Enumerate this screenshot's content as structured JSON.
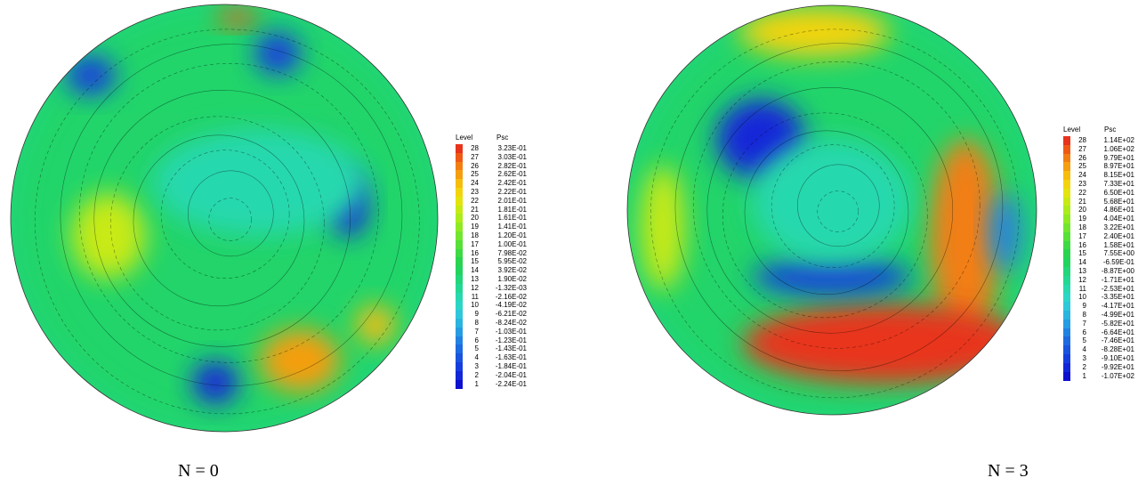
{
  "chart_data": [
    {
      "type": "heatmap",
      "caption": "N = 0",
      "legend": {
        "header_level": "Level",
        "header_value": "Psc",
        "levels": [
          28,
          27,
          26,
          25,
          24,
          23,
          22,
          21,
          20,
          19,
          18,
          17,
          16,
          15,
          14,
          13,
          12,
          11,
          10,
          9,
          8,
          7,
          6,
          5,
          4,
          3,
          2,
          1
        ],
        "values": [
          "3.23E-01",
          "3.03E-01",
          "2.82E-01",
          "2.62E-01",
          "2.42E-01",
          "2.22E-01",
          "2.01E-01",
          "1.81E-01",
          "1.61E-01",
          "1.41E-01",
          "1.20E-01",
          "1.00E-01",
          "7.98E-02",
          "5.95E-02",
          "3.92E-02",
          "1.90E-02",
          "-1.32E-03",
          "-2.16E-02",
          "-4.19E-02",
          "-6.21E-02",
          "-8.24E-02",
          "-1.03E-01",
          "-1.23E-01",
          "-1.43E-01",
          "-1.63E-01",
          "-1.84E-01",
          "-2.04E-01",
          "-2.24E-01"
        ],
        "colors": [
          "#e8341c",
          "#ee5a16",
          "#f27e12",
          "#f59e0f",
          "#f7bd0d",
          "#f3d40c",
          "#e3e40e",
          "#c8ea14",
          "#acec1c",
          "#8fea24",
          "#72e62e",
          "#56e038",
          "#3dda44",
          "#2ad44e",
          "#22d45e",
          "#22d67a",
          "#24d894",
          "#28d8ae",
          "#2cd6c6",
          "#2ec8da",
          "#2ab4e0",
          "#269ce2",
          "#2282e2",
          "#1e6ae0",
          "#1a54de",
          "#163ede",
          "#1228d8",
          "#0e10d0"
        ]
      },
      "blobs": [
        {
          "region": "upper-left blue",
          "level": 3
        },
        {
          "region": "top red",
          "level": 27
        },
        {
          "region": "top blue",
          "level": 3
        },
        {
          "region": "right blue",
          "level": 2
        },
        {
          "region": "left yellow",
          "level": 21
        },
        {
          "region": "bottom blue",
          "level": 2
        },
        {
          "region": "bottom orange",
          "level": 25
        },
        {
          "region": "right orange",
          "level": 24
        },
        {
          "region": "center cyan",
          "level": 11
        }
      ]
    },
    {
      "type": "heatmap",
      "caption": "N = 3",
      "legend": {
        "header_level": "Level",
        "header_value": "Psc",
        "levels": [
          28,
          27,
          26,
          25,
          24,
          23,
          22,
          21,
          20,
          19,
          18,
          17,
          16,
          15,
          14,
          13,
          12,
          11,
          10,
          9,
          8,
          7,
          6,
          5,
          4,
          3,
          2,
          1
        ],
        "values": [
          "1.14E+02",
          "1.06E+02",
          "9.79E+01",
          "8.97E+01",
          "8.15E+01",
          "7.33E+01",
          "6.50E+01",
          "5.68E+01",
          "4.86E+01",
          "4.04E+01",
          "3.22E+01",
          "2.40E+01",
          "1.58E+01",
          "7.55E+00",
          "-6.59E-01",
          "-8.87E+00",
          "-1.71E+01",
          "-2.53E+01",
          "-3.35E+01",
          "-4.17E+01",
          "-4.99E+01",
          "-5.82E+01",
          "-6.64E+01",
          "-7.46E+01",
          "-8.28E+01",
          "-9.10E+01",
          "-9.92E+01",
          "-1.07E+02"
        ],
        "colors": [
          "#e8341c",
          "#ee5a16",
          "#f27e12",
          "#f59e0f",
          "#f7bd0d",
          "#f3d40c",
          "#e3e40e",
          "#c8ea14",
          "#acec1c",
          "#8fea24",
          "#72e62e",
          "#56e038",
          "#3dda44",
          "#2ad44e",
          "#22d45e",
          "#22d67a",
          "#24d894",
          "#28d8ae",
          "#2cd6c6",
          "#2ec8da",
          "#2ab4e0",
          "#269ce2",
          "#2282e2",
          "#1e6ae0",
          "#1a54de",
          "#163ede",
          "#1228d8",
          "#0e10d0"
        ]
      },
      "blobs": [
        {
          "region": "top yellow",
          "level": 23
        },
        {
          "region": "upper-left blue",
          "level": 2
        },
        {
          "region": "spiral orange",
          "level": 26
        },
        {
          "region": "bottom red",
          "level": 28
        },
        {
          "region": "middle blue",
          "level": 3
        },
        {
          "region": "right blue",
          "level": 6
        },
        {
          "region": "left yellow",
          "level": 21
        },
        {
          "region": "center cyan",
          "level": 11
        }
      ]
    }
  ]
}
